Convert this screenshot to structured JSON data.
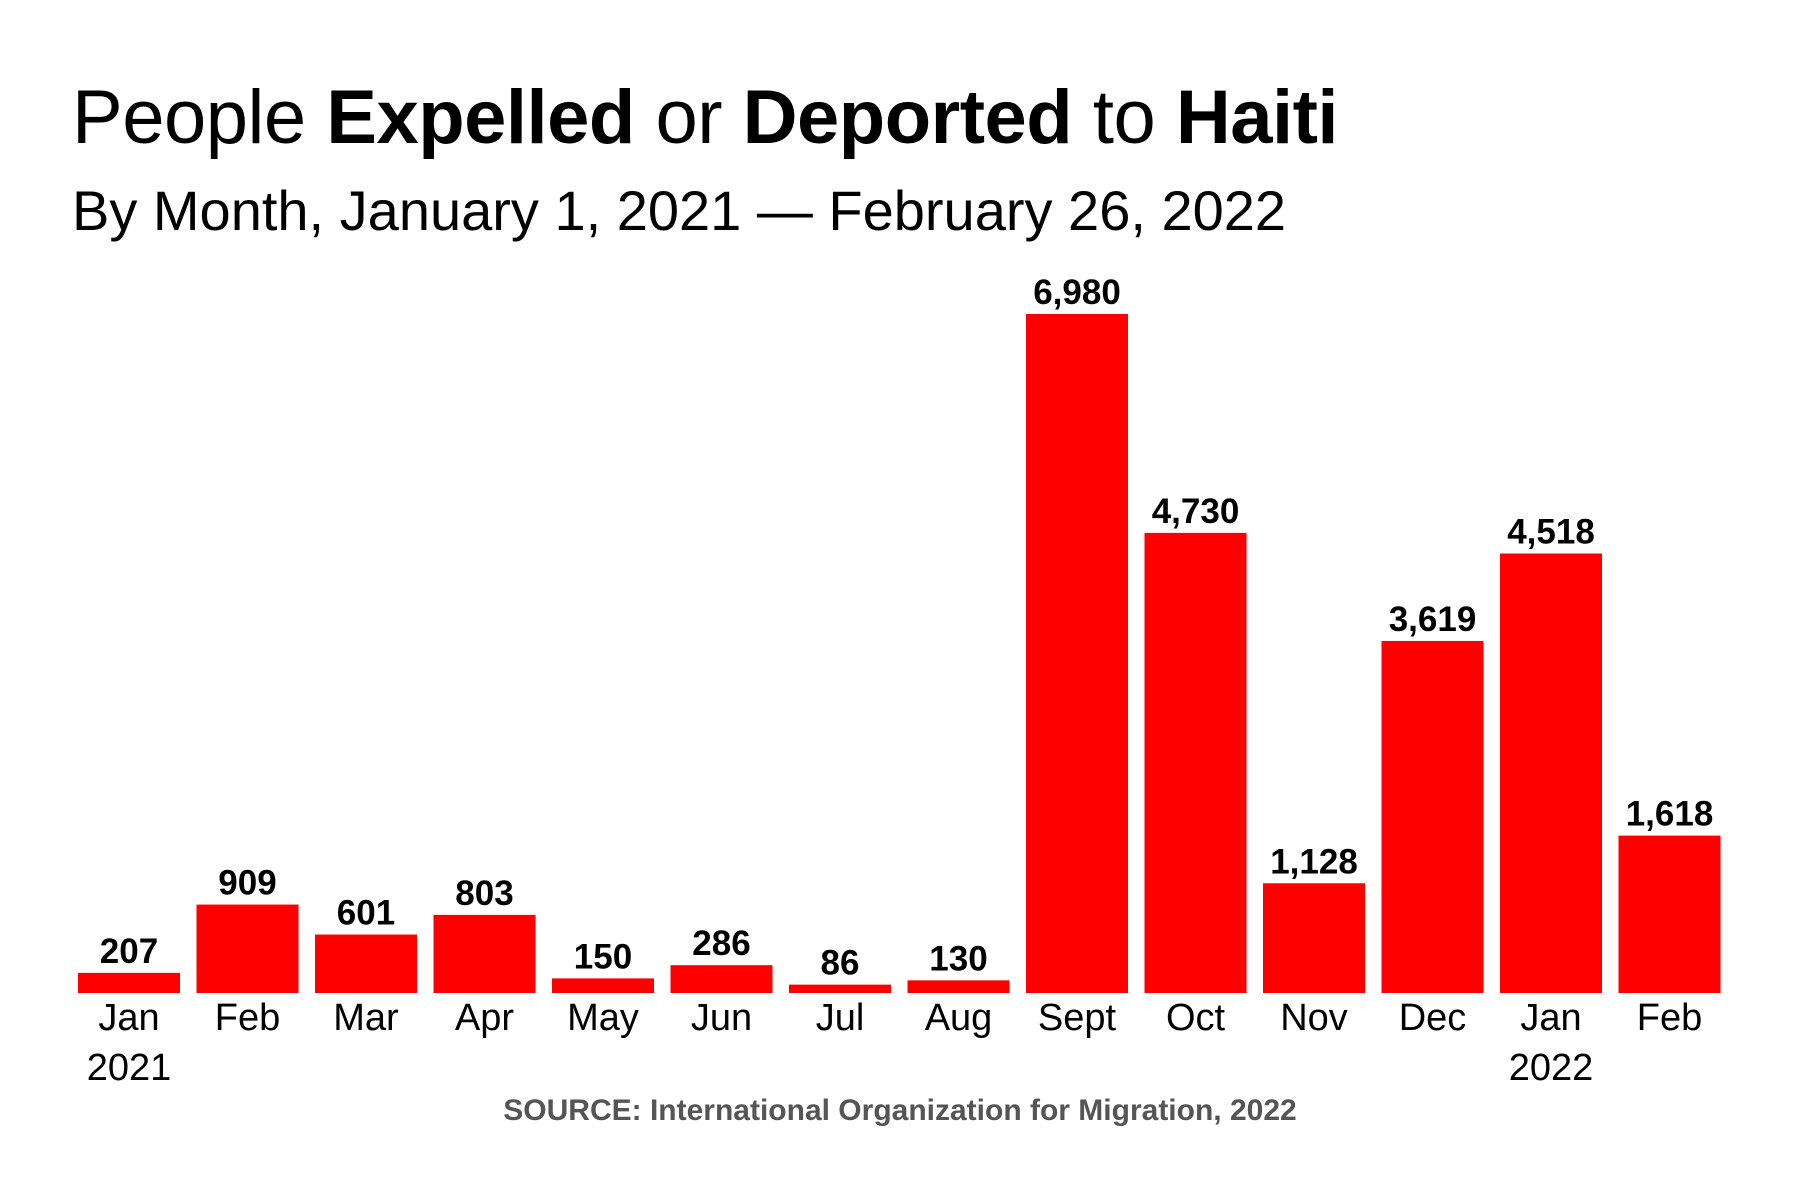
{
  "chart_data": {
    "type": "bar",
    "title_parts": [
      "People ",
      "Expelled",
      " or ",
      "Deported",
      " to ",
      "Haiti"
    ],
    "subtitle": "By Month, January 1, 2021 — February 26, 2022",
    "categories": [
      "Jan",
      "Feb",
      "Mar",
      "Apr",
      "May",
      "Jun",
      "Jul",
      "Aug",
      "Sept",
      "Oct",
      "Nov",
      "Dec",
      "Jan",
      "Feb"
    ],
    "year_labels": [
      "2021",
      "",
      "",
      "",
      "",
      "",
      "",
      "",
      "",
      "",
      "",
      "",
      "2022",
      ""
    ],
    "values": [
      207,
      909,
      601,
      803,
      150,
      286,
      86,
      130,
      6980,
      4730,
      1128,
      3619,
      4518,
      1618
    ],
    "value_labels": [
      "207",
      "909",
      "601",
      "803",
      "150",
      "286",
      "86",
      "130",
      "6,980",
      "4,730",
      "1,128",
      "3,619",
      "4,518",
      "1,618"
    ],
    "xlabel": "",
    "ylabel": "",
    "ylim": [
      0,
      6980
    ],
    "grid": false,
    "bar_color": "#ff0000",
    "source": "SOURCE: International Organization for Migration, 2022"
  }
}
